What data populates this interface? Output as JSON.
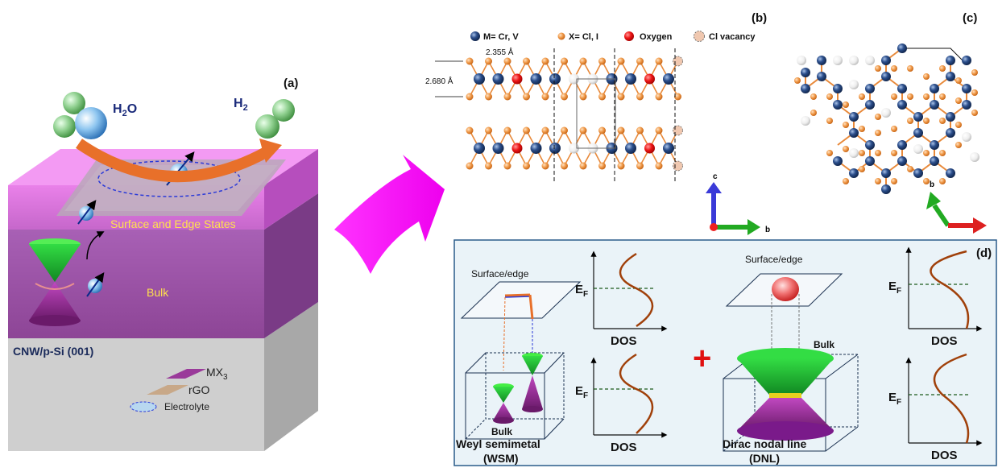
{
  "panel_a": {
    "label": "(a)",
    "water": "H",
    "water_sub": "2",
    "water_tail": "O",
    "hydrogen": "H",
    "hydrogen_sub": "2",
    "surface_states": "Surface and Edge States",
    "bulk": "Bulk",
    "substrate": "CNW/p-Si (001)",
    "legend_mx": "MX",
    "legend_mx_sub": "3",
    "legend_rgo": "rGO",
    "legend_electrolyte": "Electrolyte",
    "colors": {
      "surface": "#d966d9",
      "bulk": "#9b4fa6",
      "substrate": "#c9c9c9",
      "arrow": "#e8702a",
      "cone": "#22cc33",
      "cone_dark": "#8a2a8a",
      "text_yellow": "#ffe14d"
    }
  },
  "panel_b": {
    "label": "(b)",
    "legend_metal": "M= Cr, V",
    "legend_halogen": "X= Cl, I",
    "legend_oxygen": "Oxygen",
    "legend_vacancy": "Cl vacancy",
    "dim_1": "2.355 Å",
    "dim_2": "2.680 Å",
    "axis_c": "c",
    "axis_b": "b",
    "colors": {
      "metal": "#1e3a6e",
      "halogen": "#e8893a",
      "oxygen": "#e01010",
      "vacancy": "#f0c8b0",
      "bond": "#e8893a"
    }
  },
  "panel_c": {
    "label": "(c)",
    "axis_b": "b"
  },
  "panel_d": {
    "label": "(d)",
    "surface_left": "Surface/edge",
    "surface_right": "Surface/edge",
    "bulk_left": "Bulk",
    "bulk_right": "Bulk",
    "ef": "E",
    "ef_sub": "F",
    "dos": "DOS",
    "plus": "+",
    "wsm_title": "Weyl semimetal",
    "wsm_abbr": "(WSM)",
    "dnl_title": "Dirac nodal line",
    "dnl_abbr": "(DNL)",
    "colors": {
      "border": "#2a5c8a",
      "curve": "#a0400a",
      "plus": "#e01010"
    }
  }
}
